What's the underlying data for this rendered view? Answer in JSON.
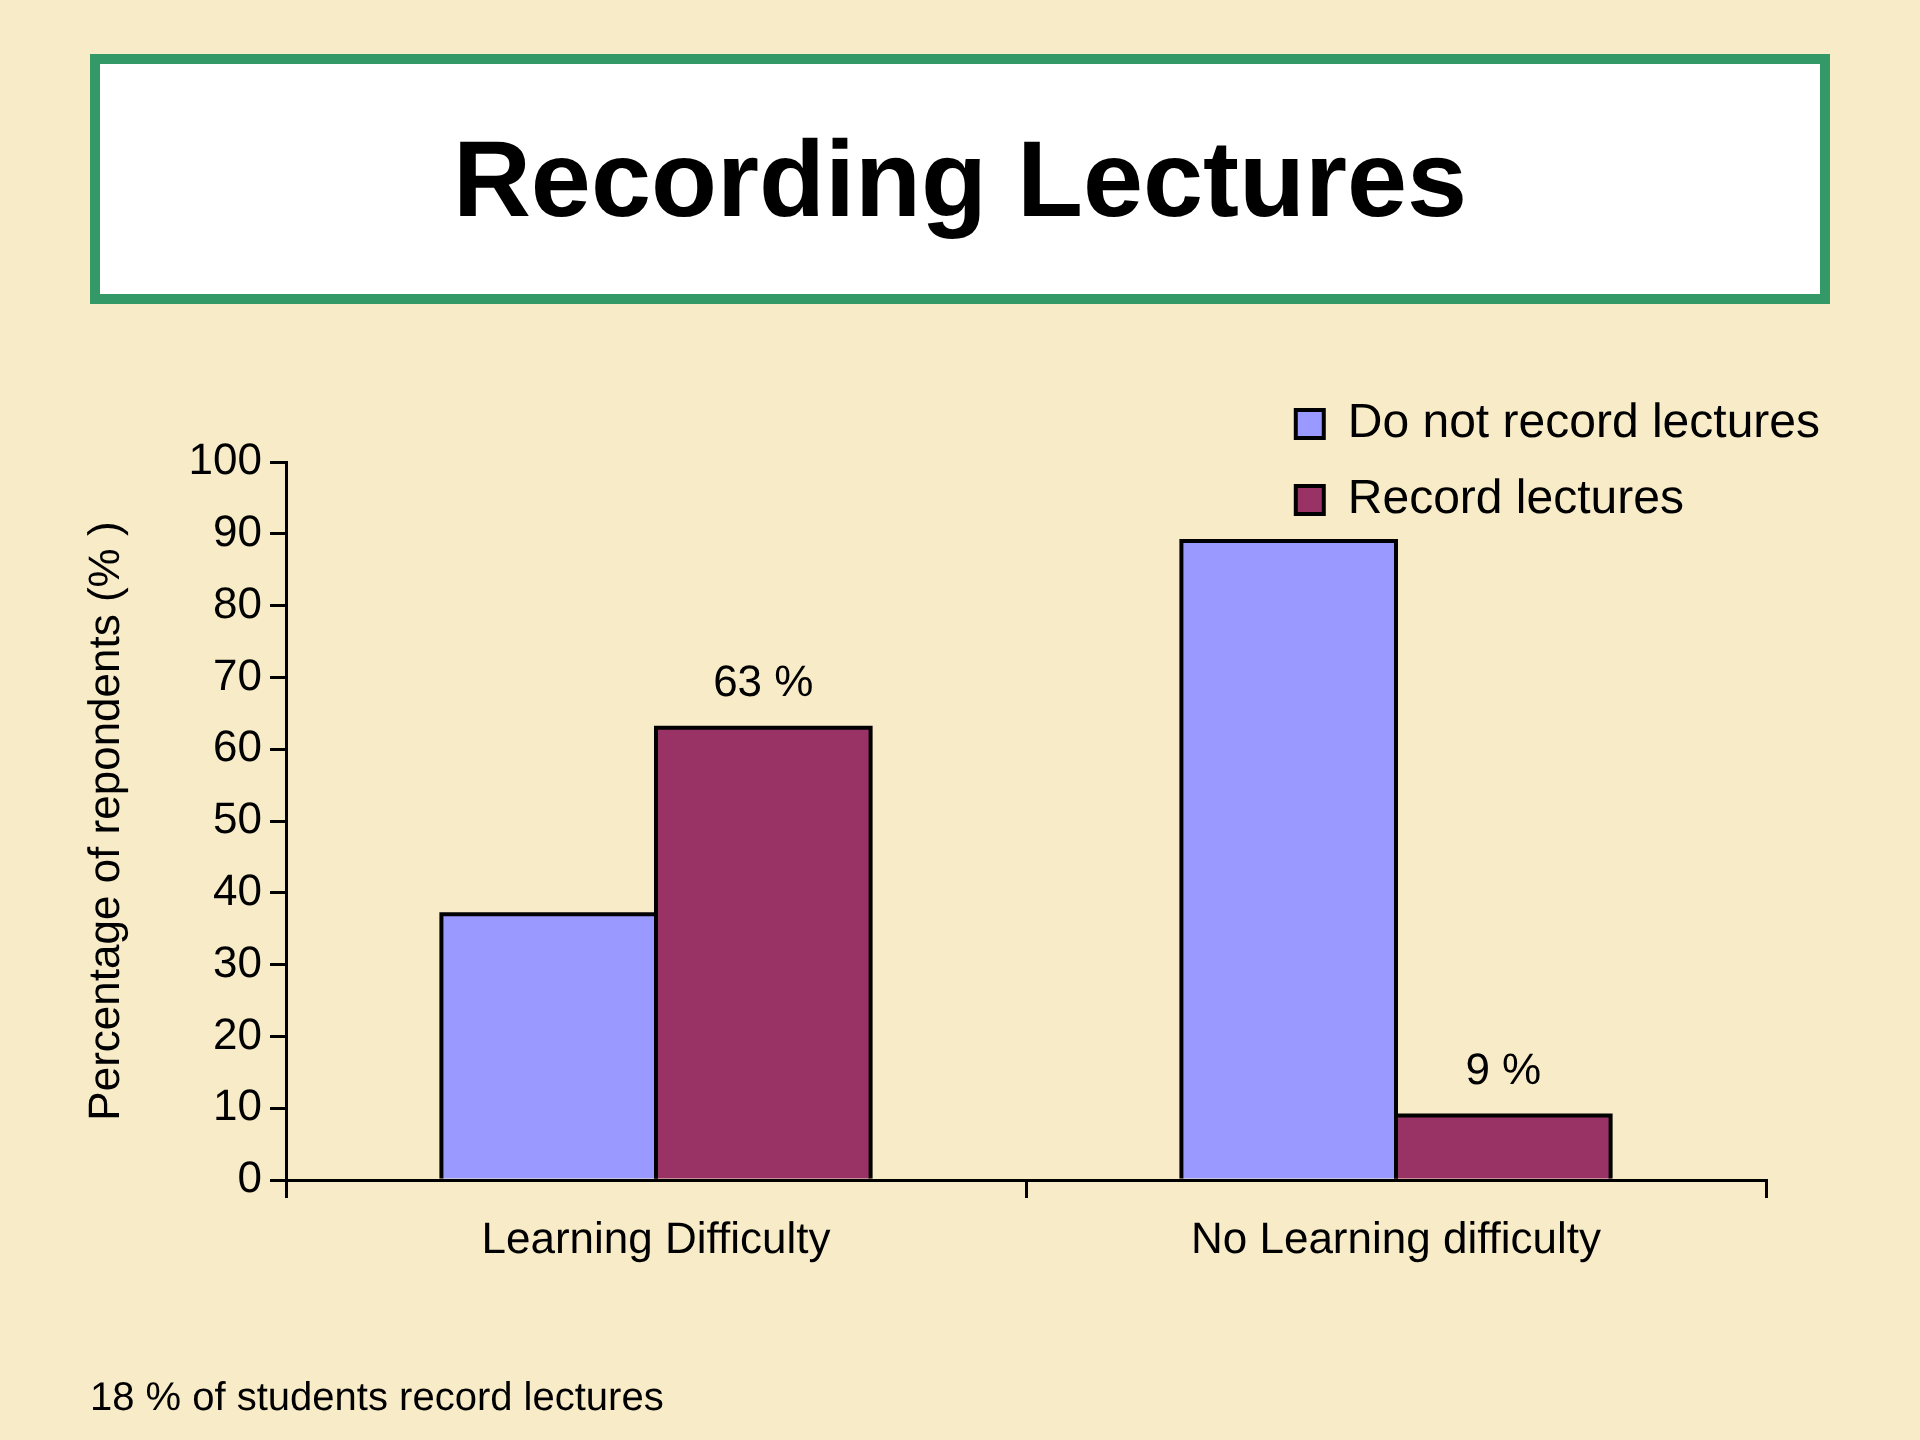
{
  "chart_data": {
    "type": "bar",
    "title": "Recording Lectures",
    "ylabel": "Percentage of repondents (% )",
    "categories": [
      "Learning Difficulty",
      "No Learning difficulty"
    ],
    "series": [
      {
        "name": "Do not record lectures",
        "color": "#9999ff",
        "values": [
          37,
          89
        ]
      },
      {
        "name": "Record lectures",
        "color": "#993366",
        "values": [
          63,
          9
        ],
        "value_labels": [
          "63 %",
          "9 %"
        ]
      }
    ],
    "ylim": [
      0,
      100
    ],
    "yticks": [
      0,
      10,
      20,
      30,
      40,
      50,
      60,
      70,
      80,
      90,
      100
    ],
    "grid": false,
    "legend": "top right",
    "annotations": [
      "18 % of students record lectures"
    ]
  }
}
